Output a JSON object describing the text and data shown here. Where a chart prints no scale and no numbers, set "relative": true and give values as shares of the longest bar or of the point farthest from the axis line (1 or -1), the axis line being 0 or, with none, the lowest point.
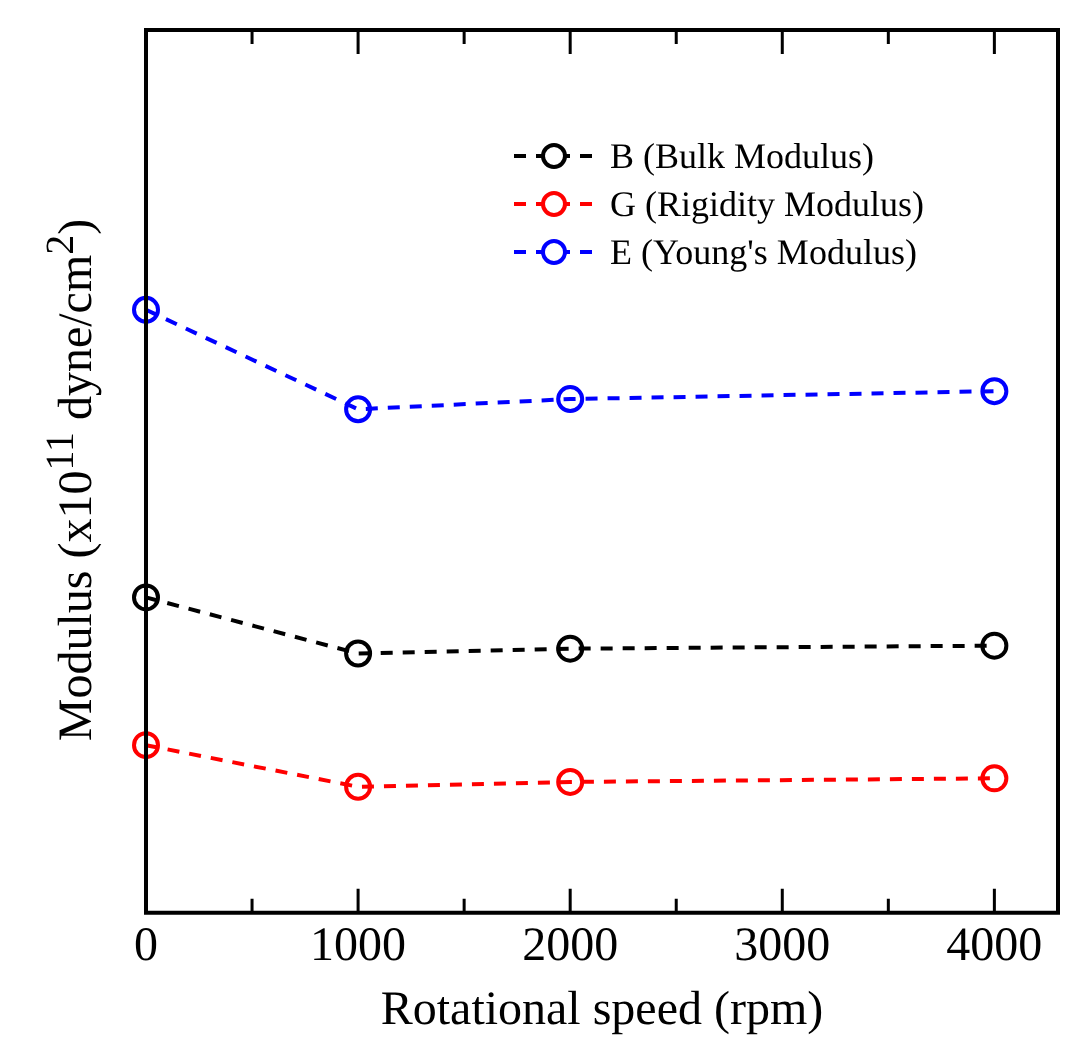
{
  "chart_data": {
    "type": "line",
    "relative": true,
    "xlabel": "Rotational speed (rpm)",
    "ylabel": "Modulus (x10$^{11}$ dyne/cm$^{2}$)",
    "x": [
      0,
      1000,
      2000,
      4000
    ],
    "xlim": [
      0,
      4300
    ],
    "xticks": [
      0,
      {
        "value": 500,
        "label": null
      },
      1000,
      {
        "value": 1500,
        "label": null
      },
      2000,
      {
        "value": 2500,
        "label": null
      },
      3000,
      {
        "value": 3500,
        "label": null
      },
      4000
    ],
    "series": [
      {
        "name": "B (Bulk Modulus)",
        "color": "#000000",
        "values": [
          0.523,
          0.43,
          0.438,
          0.443
        ]
      },
      {
        "name": "G (Rigidity Modulus)",
        "color": "#ff0000",
        "values": [
          0.278,
          0.209,
          0.217,
          0.223
        ]
      },
      {
        "name": "E (Young's Modulus)",
        "color": "#0000ff",
        "values": [
          1,
          0.835,
          0.852,
          0.865
        ]
      }
    ],
    "marker": "circle",
    "line_style": "dashed",
    "legend": "top right",
    "grid": false
  }
}
